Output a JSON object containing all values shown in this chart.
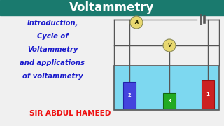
{
  "bg_color": "#f0f0f0",
  "header_color": "#1a7a6e",
  "header_text": "Voltammetry",
  "header_text_color": "#ffffff",
  "left_text_lines": [
    "Introduction,",
    "Cycle of",
    "Voltammetry",
    "and applications",
    "of voltammetry"
  ],
  "left_text_color": "#1a1acc",
  "bottom_text": "SIR ABDUL HAMEED",
  "bottom_text_color": "#ee1111",
  "circuit": {
    "wire_color": "#555555",
    "ammeter_color": "#e8d870",
    "voltmeter_color": "#e8d870",
    "water_color": "#7dd8f0",
    "tank_border": "#555555",
    "electrode1_color": "#4444dd",
    "electrode1_label": "2",
    "electrode2_color": "#22aa22",
    "electrode2_label": "3",
    "electrode3_color": "#cc2222",
    "electrode3_label": "1"
  }
}
